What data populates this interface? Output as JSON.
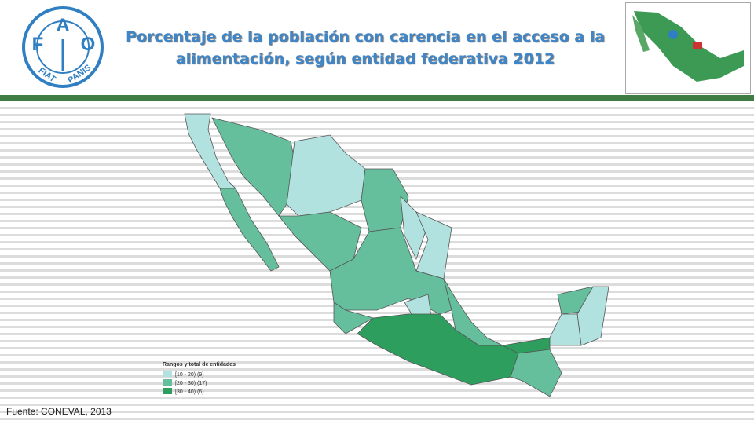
{
  "header": {
    "title_lines": [
      "Porcentaje de la población con carencia en el acceso a la",
      "alimentación, según entidad federativa 2012"
    ],
    "logo": {
      "letters": [
        "F",
        "A",
        "O"
      ],
      "motto": [
        "FIAT",
        "PANIS"
      ]
    }
  },
  "legend": {
    "title": "Rangos y total de entidades",
    "items": [
      {
        "label": "[10 - 20) (9)",
        "color": "#b2e2df"
      },
      {
        "label": "[20 - 30) (17)",
        "color": "#66bf9c"
      },
      {
        "label": "[30 - 40) (6)",
        "color": "#2e9e5f"
      }
    ]
  },
  "source": "Fuente: CONEVAL, 2013"
}
